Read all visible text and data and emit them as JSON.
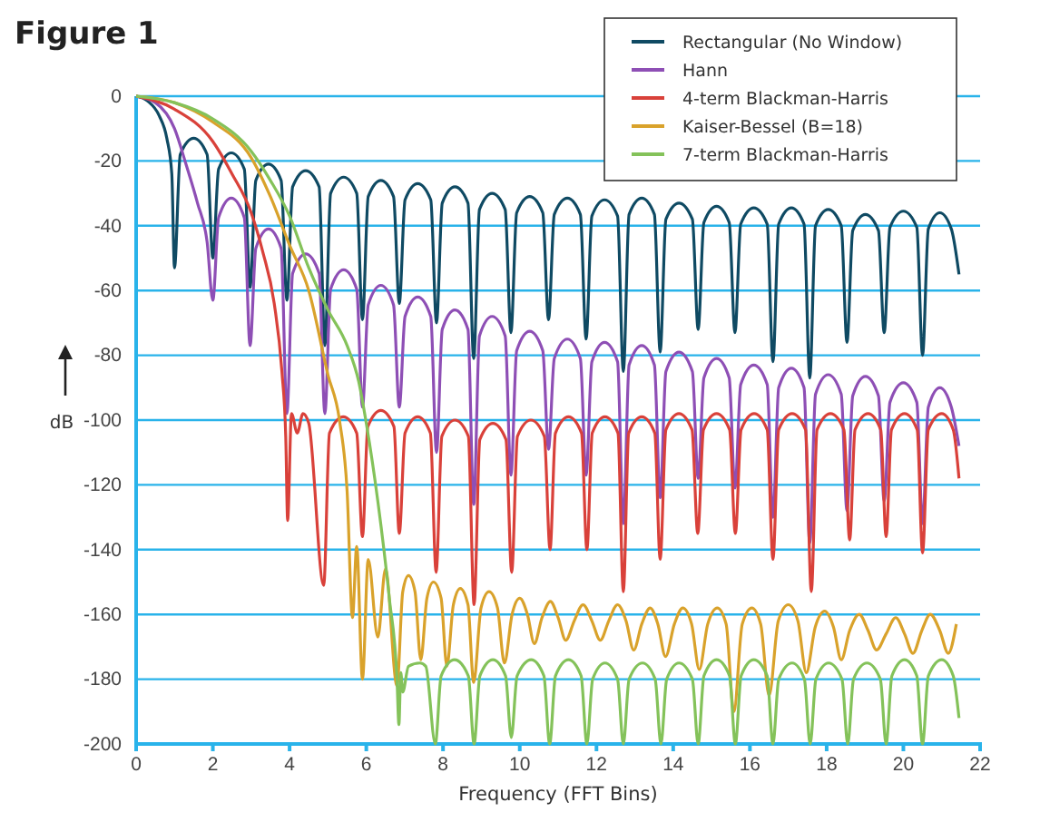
{
  "chart_data": {
    "type": "line",
    "title": "Figure 1",
    "xlabel": "Frequency (FFT Bins)",
    "ylabel": "dB",
    "xlim": [
      0,
      22
    ],
    "xticks": [
      0,
      2,
      4,
      6,
      8,
      10,
      12,
      14,
      16,
      18,
      20,
      22
    ],
    "ylim": [
      -200,
      0
    ],
    "yticks": [
      -200,
      -180,
      -160,
      -140,
      -120,
      -100,
      -80,
      -60,
      -40,
      -20,
      0
    ],
    "grid": "y",
    "legend": "top right",
    "marker": "none",
    "line_style": "solid",
    "series": [
      {
        "name": "Rectangular (No Window)",
        "color": "#0f4a63",
        "x": [
          0,
          0.3,
          0.6,
          0.8,
          0.93,
          1,
          1.15,
          1.5,
          1.85,
          2,
          2.15,
          2.48,
          2.82,
          2.97,
          3.12,
          3.45,
          3.78,
          3.93,
          4.08,
          4.42,
          4.77,
          4.92,
          5.07,
          5.41,
          5.75,
          5.9,
          6.05,
          6.38,
          6.71,
          6.86,
          7.01,
          7.34,
          7.68,
          7.83,
          7.98,
          8.31,
          8.65,
          8.8,
          8.95,
          9.28,
          9.62,
          9.77,
          9.92,
          10.26,
          10.6,
          10.75,
          10.9,
          11.24,
          11.58,
          11.73,
          11.88,
          12.21,
          12.55,
          12.7,
          12.85,
          13.18,
          13.51,
          13.66,
          13.81,
          14.15,
          14.5,
          14.65,
          14.8,
          15.13,
          15.46,
          15.61,
          15.76,
          16.1,
          16.45,
          16.6,
          16.75,
          17.08,
          17.41,
          17.56,
          17.71,
          18.04,
          18.38,
          18.53,
          18.68,
          19.01,
          19.35,
          19.5,
          19.65,
          20,
          20.35,
          20.5,
          20.65,
          20.95,
          21.25,
          21.45
        ],
        "values": [
          0,
          -1.5,
          -6,
          -13,
          -24,
          -53,
          -18,
          -13,
          -18,
          -50,
          -22.5,
          -17.5,
          -22.5,
          -59,
          -26,
          -21,
          -26,
          -63,
          -28,
          -23,
          -28,
          -77,
          -30,
          -25,
          -30,
          -69,
          -31,
          -26,
          -31,
          -64,
          -32,
          -27,
          -32,
          -70,
          -33,
          -28,
          -33,
          -81,
          -35,
          -30,
          -35,
          -73,
          -36,
          -31,
          -36,
          -69,
          -36.5,
          -31.5,
          -36.5,
          -75,
          -37,
          -32,
          -37,
          -85,
          -36.5,
          -31.5,
          -36.5,
          -79,
          -38,
          -33,
          -38,
          -72,
          -39,
          -34,
          -39,
          -73,
          -39.5,
          -34.5,
          -39.5,
          -82,
          -39.5,
          -34.5,
          -39.5,
          -87,
          -40,
          -35,
          -40,
          -76,
          -41.5,
          -36.5,
          -41.5,
          -73,
          -40.5,
          -35.5,
          -40.5,
          -80,
          -41,
          -36,
          -41,
          -55
        ]
      },
      {
        "name": "Hann",
        "color": "#8e4fb5",
        "x": [
          0,
          0.5,
          1,
          1.3,
          1.6,
          1.85,
          2,
          2.15,
          2.48,
          2.82,
          2.97,
          3.12,
          3.45,
          3.78,
          3.93,
          4.08,
          4.42,
          4.77,
          4.92,
          5.07,
          5.41,
          5.75,
          5.9,
          6.05,
          6.38,
          6.71,
          6.86,
          7.01,
          7.34,
          7.68,
          7.83,
          7.98,
          8.31,
          8.65,
          8.8,
          8.95,
          9.28,
          9.62,
          9.77,
          9.92,
          10.26,
          10.6,
          10.75,
          10.9,
          11.24,
          11.58,
          11.73,
          11.88,
          12.21,
          12.55,
          12.7,
          12.85,
          13.18,
          13.51,
          13.66,
          13.81,
          14.15,
          14.5,
          14.65,
          14.8,
          15.13,
          15.46,
          15.61,
          15.76,
          16.1,
          16.45,
          16.6,
          16.75,
          17.08,
          17.41,
          17.56,
          17.71,
          18.04,
          18.38,
          18.53,
          18.68,
          19.01,
          19.35,
          19.5,
          19.65,
          20,
          20.35,
          20.5,
          20.65,
          20.95,
          21.25,
          21.45
        ],
        "values": [
          0,
          -2,
          -10,
          -21,
          -33,
          -45,
          -63,
          -37.5,
          -31.5,
          -37.5,
          -77,
          -47,
          -41,
          -47,
          -98,
          -54.7,
          -48.7,
          -54.7,
          -98,
          -59.6,
          -53.6,
          -59.6,
          -96,
          -64.4,
          -58.4,
          -64.4,
          -96,
          -68,
          -62,
          -68,
          -110,
          -72,
          -66,
          -72,
          -126,
          -74,
          -68,
          -74,
          -117,
          -78.6,
          -72.6,
          -78.6,
          -109,
          -81,
          -75,
          -81,
          -117,
          -82,
          -76,
          -82,
          -132,
          -83,
          -77,
          -83,
          -124,
          -85,
          -79,
          -85,
          -118,
          -87,
          -81,
          -87,
          -121,
          -89,
          -83,
          -89,
          -130,
          -90,
          -84,
          -90,
          -138,
          -92,
          -86,
          -92,
          -128,
          -92.5,
          -86.5,
          -92.5,
          -125,
          -94.5,
          -88.5,
          -94.5,
          -132,
          -96,
          -90,
          -96,
          -108
        ]
      },
      {
        "name": "4-term Blackman-Harris",
        "color": "#d9413a",
        "x": [
          0,
          1,
          2,
          2.5,
          3,
          3.3,
          3.6,
          3.8,
          3.9,
          3.95,
          4.05,
          4.2,
          4.35,
          4.5,
          4.89,
          5.04,
          5.4,
          5.75,
          5.9,
          6.04,
          6.38,
          6.72,
          6.86,
          7.01,
          7.34,
          7.67,
          7.82,
          7.97,
          8.31,
          8.66,
          8.81,
          8.96,
          9.3,
          9.64,
          9.79,
          9.94,
          10.29,
          10.64,
          10.79,
          10.93,
          11.27,
          11.61,
          11.75,
          11.89,
          12.22,
          12.56,
          12.7,
          12.84,
          13.18,
          13.52,
          13.66,
          13.81,
          14.15,
          14.49,
          14.64,
          14.79,
          15.13,
          15.47,
          15.62,
          15.77,
          16.11,
          16.45,
          16.6,
          16.75,
          17.1,
          17.45,
          17.6,
          17.75,
          18.1,
          18.45,
          18.6,
          18.74,
          19.08,
          19.41,
          19.55,
          19.69,
          20.03,
          20.36,
          20.5,
          20.65,
          21,
          21.3,
          21.45
        ],
        "values": [
          0,
          -4,
          -14,
          -24,
          -36,
          -48,
          -64,
          -85,
          -105,
          -131,
          -98,
          -104,
          -98,
          -101,
          -151,
          -104,
          -99,
          -104,
          -136,
          -102,
          -97,
          -102,
          -135,
          -104,
          -99,
          -104,
          -147,
          -105,
          -100,
          -105,
          -157,
          -106,
          -101,
          -106,
          -147,
          -105,
          -100,
          -105,
          -140,
          -104,
          -99,
          -104,
          -140,
          -104,
          -99,
          -104,
          -153,
          -104,
          -99,
          -104,
          -143,
          -103,
          -98,
          -103,
          -135,
          -103,
          -98,
          -103,
          -135,
          -103,
          -98,
          -103,
          -143,
          -103,
          -98,
          -103,
          -153,
          -103,
          -98,
          -103,
          -137,
          -103,
          -98,
          -103,
          -136,
          -103,
          -98,
          -103,
          -141,
          -103,
          -98,
          -103,
          -118
        ]
      },
      {
        "name": "Kaiser-Bessel (B=18)",
        "color": "#d9a22b",
        "x": [
          0,
          1,
          2,
          3,
          3.5,
          4,
          4.5,
          5,
          5.3,
          5.5,
          5.64,
          5.75,
          5.9,
          6.05,
          6.3,
          6.5,
          6.8,
          6.95,
          7.1,
          7.27,
          7.42,
          7.58,
          7.75,
          7.95,
          8.1,
          8.27,
          8.45,
          8.65,
          8.8,
          8.99,
          9.2,
          9.42,
          9.6,
          9.8,
          10,
          10.2,
          10.38,
          10.58,
          10.8,
          11,
          11.2,
          11.42,
          11.65,
          11.88,
          12.1,
          12.32,
          12.55,
          12.77,
          12.97,
          13.18,
          13.4,
          13.6,
          13.8,
          14.03,
          14.25,
          14.48,
          14.68,
          14.9,
          15.15,
          15.38,
          15.58,
          15.8,
          16.05,
          16.28,
          16.5,
          16.74,
          17,
          17.25,
          17.47,
          17.7,
          17.95,
          18.18,
          18.38,
          18.6,
          18.85,
          19.08,
          19.3,
          19.55,
          19.8,
          20.03,
          20.25,
          20.48,
          20.7,
          20.95,
          21.17,
          21.38
        ],
        "values": [
          0,
          -2,
          -8,
          -19,
          -31,
          -46,
          -60,
          -86,
          -100,
          -122,
          -161,
          -139,
          -180,
          -143,
          -167,
          -146,
          -182,
          -153,
          -148,
          -153,
          -174,
          -155,
          -150,
          -155,
          -176,
          -157,
          -152,
          -157,
          -181,
          -158,
          -153,
          -158,
          -175,
          -160,
          -155,
          -160,
          -169,
          -161,
          -156,
          -161,
          -168,
          -162,
          -157,
          -162,
          -168,
          -162,
          -157,
          -162,
          -171,
          -163,
          -158,
          -163,
          -173,
          -163,
          -158,
          -163,
          -177,
          -163,
          -158,
          -163,
          -190,
          -163,
          -158,
          -163,
          -185,
          -162,
          -157,
          -162,
          -178,
          -164,
          -159,
          -164,
          -174,
          -165,
          -160,
          -165,
          -171,
          -166,
          -161,
          -166,
          -172,
          -165,
          -160,
          -165,
          -172,
          -163
        ]
      },
      {
        "name": "7-term Blackman-Harris",
        "color": "#84c25a",
        "x": [
          0,
          1,
          2,
          3,
          3.5,
          4,
          4.5,
          5,
          5.5,
          5.8,
          6,
          6.3,
          6.6,
          6.8,
          6.85,
          6.9,
          6.95,
          7.1,
          7.4,
          7.55,
          7.8,
          7.95,
          8.3,
          8.66,
          8.81,
          8.96,
          9.3,
          9.63,
          9.78,
          9.93,
          10.3,
          10.63,
          10.78,
          10.93,
          11.27,
          11.6,
          11.75,
          11.9,
          12.22,
          12.55,
          12.7,
          12.85,
          13.2,
          13.53,
          13.68,
          13.83,
          14.15,
          14.5,
          14.65,
          14.8,
          15.13,
          15.47,
          15.62,
          15.77,
          16.1,
          16.45,
          16.6,
          16.75,
          17.1,
          17.42,
          17.57,
          17.72,
          18.05,
          18.4,
          18.55,
          18.7,
          19.05,
          19.4,
          19.55,
          19.7,
          20.03,
          20.35,
          20.5,
          20.65,
          21,
          21.3,
          21.45
        ],
        "values": [
          0,
          -2,
          -7,
          -17,
          -26,
          -37,
          -53,
          -66,
          -77,
          -88,
          -101,
          -125,
          -155,
          -180,
          -194,
          -178,
          -184,
          -176,
          -175,
          -176,
          -200,
          -179,
          -174,
          -179,
          -200,
          -179,
          -174,
          -179,
          -198,
          -179,
          -174,
          -179,
          -200,
          -179,
          -174,
          -179,
          -200,
          -180,
          -175,
          -180,
          -200,
          -180,
          -175,
          -180,
          -200,
          -180,
          -175,
          -180,
          -200,
          -179,
          -174,
          -179,
          -200,
          -179,
          -174,
          -179,
          -200,
          -180,
          -175,
          -180,
          -200,
          -180,
          -175,
          -180,
          -200,
          -180,
          -175,
          -180,
          -200,
          -179,
          -174,
          -179,
          -200,
          -179,
          -174,
          -179,
          -192
        ]
      }
    ]
  }
}
